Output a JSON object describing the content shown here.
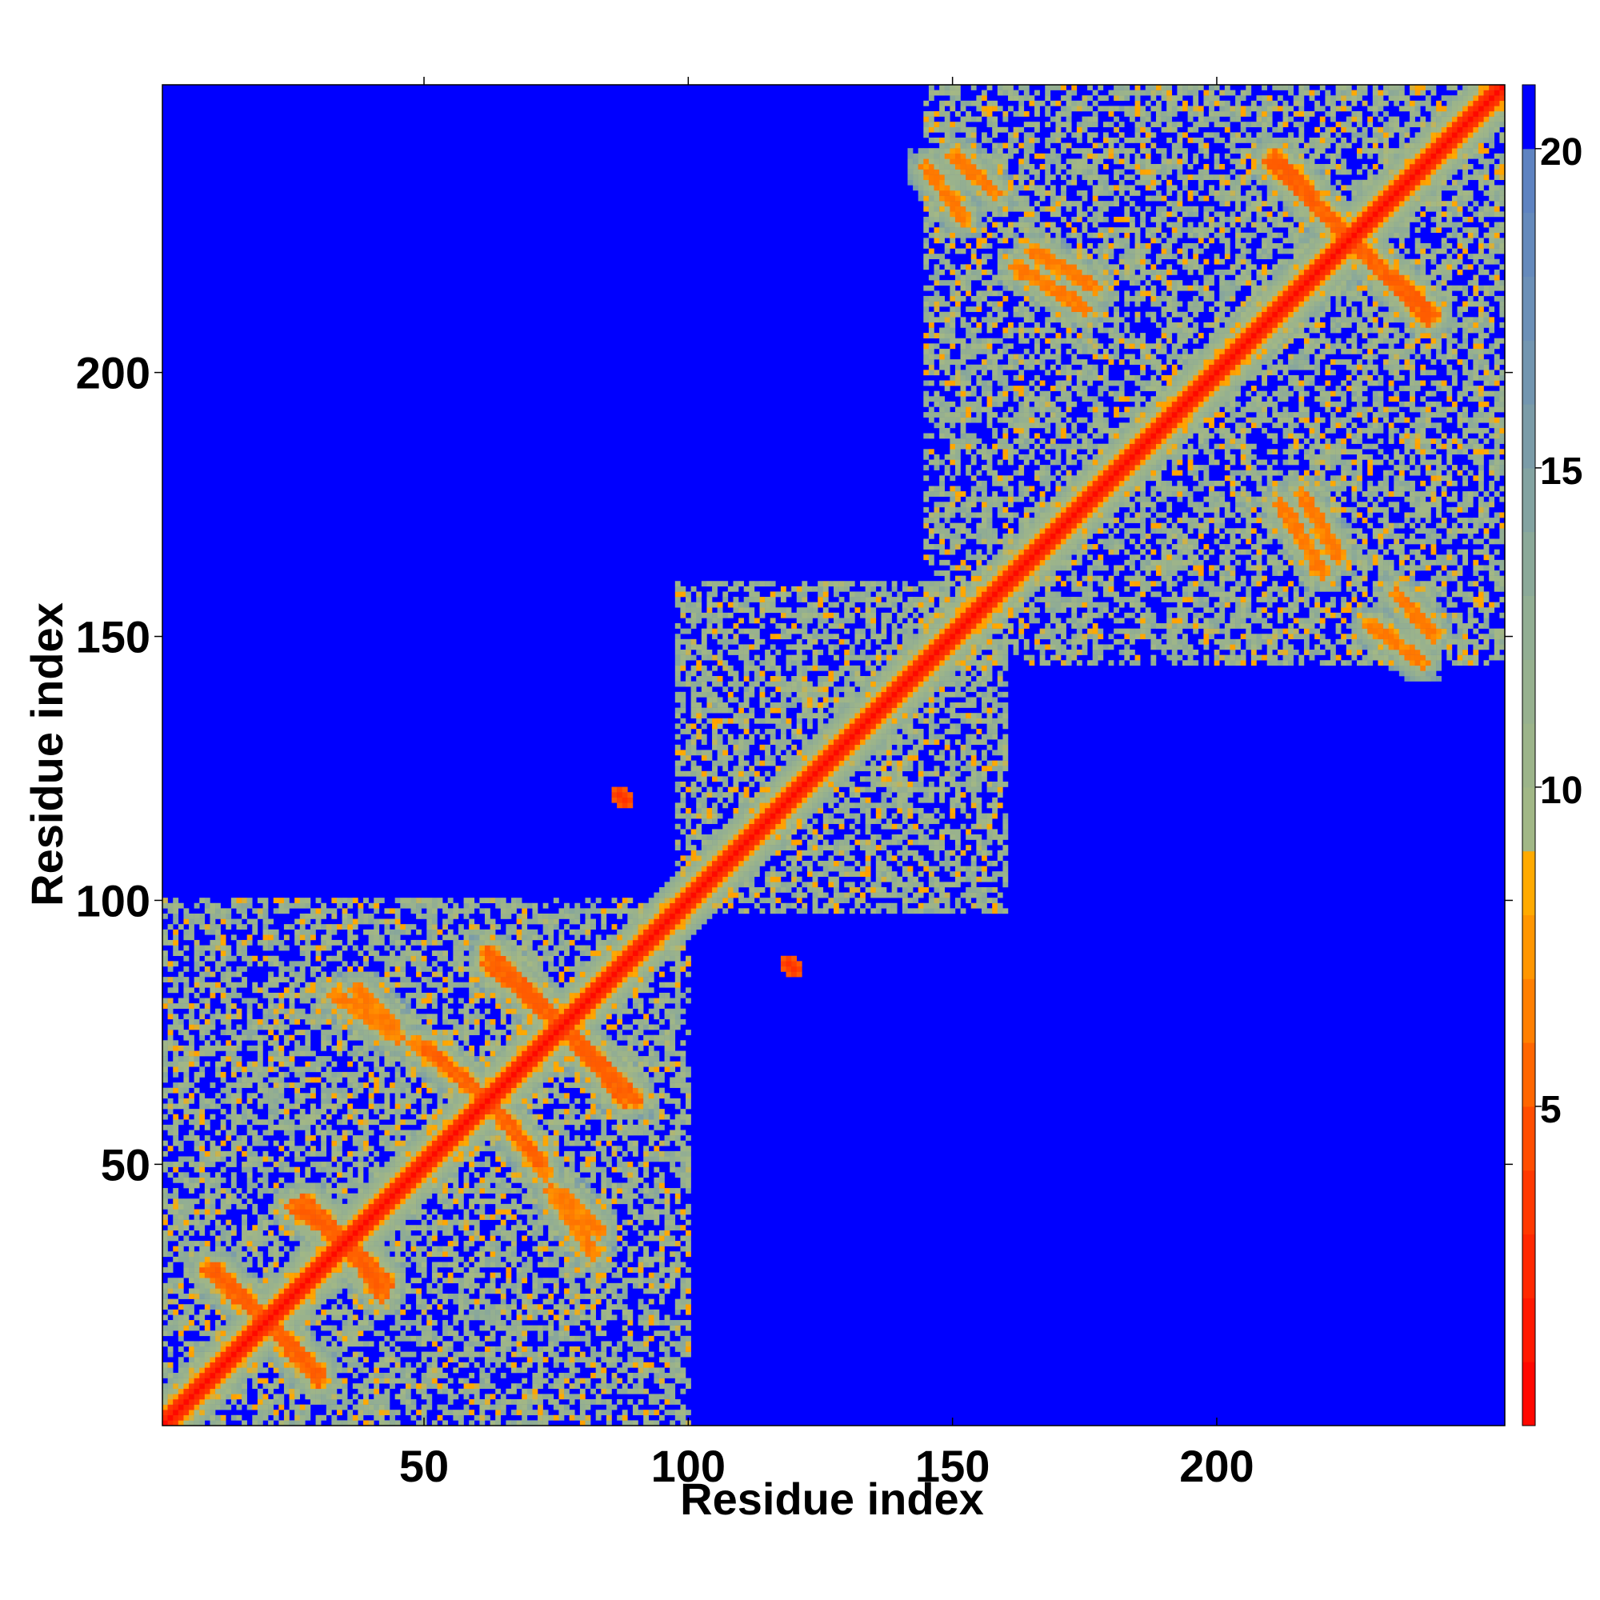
{
  "chart_data": {
    "type": "heatmap",
    "title": "",
    "xlabel": "Residue index",
    "ylabel": "Residue index",
    "xlim": [
      1,
      254
    ],
    "ylim": [
      1,
      254
    ],
    "x_ticks": [
      50,
      100,
      150,
      200
    ],
    "y_ticks": [
      50,
      100,
      150,
      200
    ],
    "colorbar": {
      "range": [
        0,
        21
      ],
      "ticks": [
        5,
        10,
        15,
        20
      ],
      "stops": [
        {
          "value": 0,
          "color": "#ff0000"
        },
        {
          "value": 4,
          "color": "#ff4000"
        },
        {
          "value": 7,
          "color": "#ff8c00"
        },
        {
          "value": 8.5,
          "color": "#ffaa00"
        },
        {
          "value": 9,
          "color": "#a4b884"
        },
        {
          "value": 13,
          "color": "#8fac95"
        },
        {
          "value": 17,
          "color": "#6f93b4"
        },
        {
          "value": 20,
          "color": "#5b80c4"
        },
        {
          "value": 20.01,
          "color": "#0000ff"
        },
        {
          "value": 21,
          "color": "#0000ff"
        }
      ]
    },
    "background_color": "#0000ff",
    "grid": false,
    "features": {
      "diagonal": {
        "from": 1,
        "to": 254,
        "value": 0.5
      },
      "domains": [
        {
          "start": 1,
          "end": 100,
          "value": 11
        },
        {
          "start": 98,
          "end": 160,
          "value": 11
        },
        {
          "start": 145,
          "end": 254,
          "value": 11
        }
      ],
      "contact_lines": [
        {
          "x1": 20,
          "y1": 20,
          "x2": 30,
          "y2": 10,
          "value": 5
        },
        {
          "x1": 35,
          "y1": 35,
          "x2": 43,
          "y2": 27,
          "value": 5
        },
        {
          "x1": 25,
          "y1": 42,
          "x2": 35,
          "y2": 35,
          "value": 5
        },
        {
          "x1": 9,
          "y1": 30,
          "x2": 20,
          "y2": 20,
          "value": 5
        },
        {
          "x1": 33,
          "y1": 82,
          "x2": 45,
          "y2": 74,
          "value": 6
        },
        {
          "x1": 48,
          "y1": 73,
          "x2": 60,
          "y2": 64,
          "value": 6
        },
        {
          "x1": 62,
          "y1": 62,
          "x2": 72,
          "y2": 50,
          "value": 5
        },
        {
          "x1": 62,
          "y1": 88,
          "x2": 76,
          "y2": 76,
          "value": 5
        },
        {
          "x1": 76,
          "y1": 76,
          "x2": 90,
          "y2": 62,
          "value": 5
        },
        {
          "x1": 76,
          "y1": 44,
          "x2": 83,
          "y2": 37,
          "value": 6
        },
        {
          "x1": 150,
          "y1": 241,
          "x2": 158,
          "y2": 234,
          "value": 6
        },
        {
          "x1": 165,
          "y1": 223,
          "x2": 177,
          "y2": 216,
          "value": 6
        },
        {
          "x1": 211,
          "y1": 241,
          "x2": 225,
          "y2": 225,
          "value": 5
        },
        {
          "x1": 225,
          "y1": 225,
          "x2": 240,
          "y2": 210,
          "value": 5
        },
        {
          "x1": 212,
          "y1": 175,
          "x2": 220,
          "y2": 162,
          "value": 6
        },
        {
          "x1": 229,
          "y1": 152,
          "x2": 239,
          "y2": 145,
          "value": 6
        }
      ],
      "isolated_contacts": [
        {
          "x": 87,
          "y": 120,
          "value": 3
        },
        {
          "x": 119,
          "y": 88,
          "value": 3
        }
      ]
    }
  }
}
